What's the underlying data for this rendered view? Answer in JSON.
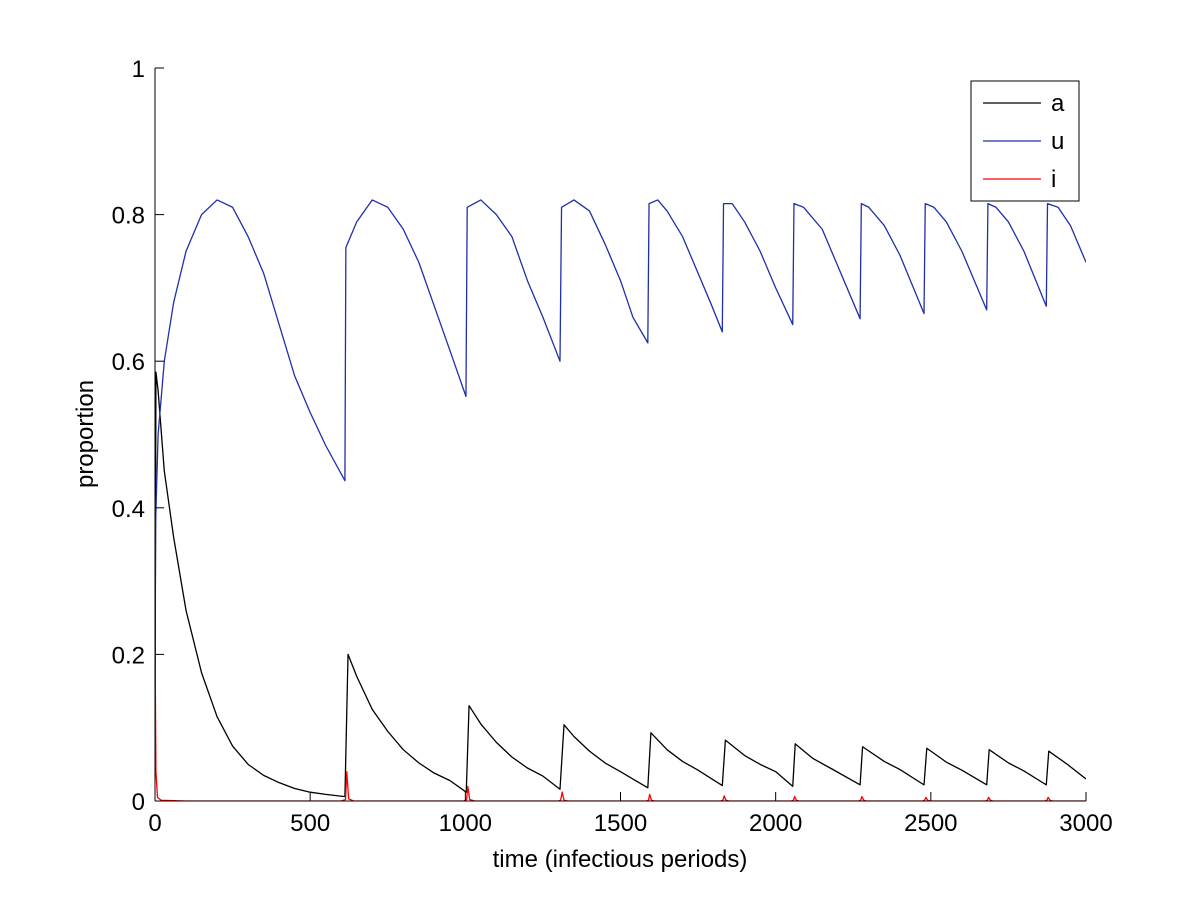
{
  "chart_data": {
    "type": "line",
    "xlabel": "time (infectious periods)",
    "ylabel": "proportion",
    "xlim": [
      0,
      3000
    ],
    "ylim": [
      0,
      1
    ],
    "xticks": [
      0,
      500,
      1000,
      1500,
      2000,
      2500,
      3000
    ],
    "yticks": [
      0,
      0.2,
      0.4,
      0.6,
      0.8,
      1
    ],
    "xtick_labels": [
      "0",
      "500",
      "1000",
      "1500",
      "2000",
      "2500",
      "3000"
    ],
    "ytick_labels": [
      "0",
      "0.2",
      "0.4",
      "0.6",
      "0.8",
      "1"
    ],
    "grid": false,
    "legend_position": "top-right",
    "series": [
      {
        "name": "a",
        "color": "#000000",
        "points": [
          [
            0,
            0.08
          ],
          [
            3,
            0.585
          ],
          [
            10,
            0.56
          ],
          [
            30,
            0.45
          ],
          [
            60,
            0.36
          ],
          [
            100,
            0.26
          ],
          [
            150,
            0.175
          ],
          [
            200,
            0.115
          ],
          [
            250,
            0.075
          ],
          [
            300,
            0.05
          ],
          [
            350,
            0.035
          ],
          [
            400,
            0.025
          ],
          [
            450,
            0.017
          ],
          [
            500,
            0.012
          ],
          [
            550,
            0.009
          ],
          [
            612,
            0.006
          ],
          [
            622,
            0.2
          ],
          [
            650,
            0.17
          ],
          [
            700,
            0.125
          ],
          [
            750,
            0.095
          ],
          [
            800,
            0.07
          ],
          [
            850,
            0.052
          ],
          [
            900,
            0.038
          ],
          [
            950,
            0.028
          ],
          [
            1003,
            0.012
          ],
          [
            1012,
            0.13
          ],
          [
            1050,
            0.105
          ],
          [
            1100,
            0.08
          ],
          [
            1150,
            0.06
          ],
          [
            1200,
            0.045
          ],
          [
            1250,
            0.034
          ],
          [
            1305,
            0.016
          ],
          [
            1318,
            0.104
          ],
          [
            1350,
            0.088
          ],
          [
            1400,
            0.068
          ],
          [
            1450,
            0.052
          ],
          [
            1500,
            0.04
          ],
          [
            1588,
            0.018
          ],
          [
            1598,
            0.093
          ],
          [
            1650,
            0.07
          ],
          [
            1700,
            0.054
          ],
          [
            1750,
            0.042
          ],
          [
            1828,
            0.021
          ],
          [
            1838,
            0.083
          ],
          [
            1900,
            0.062
          ],
          [
            1950,
            0.05
          ],
          [
            2000,
            0.04
          ],
          [
            2055,
            0.02
          ],
          [
            2063,
            0.078
          ],
          [
            2120,
            0.058
          ],
          [
            2180,
            0.044
          ],
          [
            2272,
            0.022
          ],
          [
            2280,
            0.074
          ],
          [
            2350,
            0.054
          ],
          [
            2400,
            0.043
          ],
          [
            2478,
            0.022
          ],
          [
            2487,
            0.072
          ],
          [
            2550,
            0.053
          ],
          [
            2600,
            0.042
          ],
          [
            2680,
            0.022
          ],
          [
            2688,
            0.07
          ],
          [
            2750,
            0.052
          ],
          [
            2800,
            0.041
          ],
          [
            2872,
            0.022
          ],
          [
            2880,
            0.068
          ],
          [
            2940,
            0.05
          ],
          [
            3000,
            0.03
          ]
        ]
      },
      {
        "name": "u",
        "color": "#1f2fa8",
        "points": [
          [
            0,
            0.17
          ],
          [
            2,
            0.38
          ],
          [
            10,
            0.5
          ],
          [
            30,
            0.6
          ],
          [
            60,
            0.68
          ],
          [
            100,
            0.75
          ],
          [
            150,
            0.8
          ],
          [
            200,
            0.82
          ],
          [
            250,
            0.81
          ],
          [
            300,
            0.77
          ],
          [
            350,
            0.72
          ],
          [
            400,
            0.65
          ],
          [
            450,
            0.58
          ],
          [
            500,
            0.53
          ],
          [
            550,
            0.485
          ],
          [
            612,
            0.437
          ],
          [
            615,
            0.755
          ],
          [
            650,
            0.79
          ],
          [
            700,
            0.82
          ],
          [
            750,
            0.81
          ],
          [
            800,
            0.78
          ],
          [
            850,
            0.735
          ],
          [
            900,
            0.675
          ],
          [
            950,
            0.615
          ],
          [
            1002,
            0.552
          ],
          [
            1006,
            0.81
          ],
          [
            1050,
            0.82
          ],
          [
            1100,
            0.8
          ],
          [
            1150,
            0.77
          ],
          [
            1200,
            0.71
          ],
          [
            1250,
            0.66
          ],
          [
            1305,
            0.6
          ],
          [
            1310,
            0.81
          ],
          [
            1350,
            0.82
          ],
          [
            1400,
            0.805
          ],
          [
            1450,
            0.76
          ],
          [
            1500,
            0.71
          ],
          [
            1540,
            0.66
          ],
          [
            1588,
            0.625
          ],
          [
            1592,
            0.815
          ],
          [
            1620,
            0.82
          ],
          [
            1650,
            0.805
          ],
          [
            1700,
            0.77
          ],
          [
            1750,
            0.72
          ],
          [
            1790,
            0.68
          ],
          [
            1828,
            0.64
          ],
          [
            1832,
            0.815
          ],
          [
            1860,
            0.815
          ],
          [
            1900,
            0.79
          ],
          [
            1950,
            0.75
          ],
          [
            2000,
            0.7
          ],
          [
            2055,
            0.65
          ],
          [
            2059,
            0.815
          ],
          [
            2090,
            0.81
          ],
          [
            2150,
            0.78
          ],
          [
            2200,
            0.73
          ],
          [
            2272,
            0.658
          ],
          [
            2276,
            0.815
          ],
          [
            2300,
            0.81
          ],
          [
            2350,
            0.785
          ],
          [
            2400,
            0.745
          ],
          [
            2478,
            0.665
          ],
          [
            2482,
            0.815
          ],
          [
            2510,
            0.81
          ],
          [
            2550,
            0.79
          ],
          [
            2600,
            0.75
          ],
          [
            2680,
            0.67
          ],
          [
            2684,
            0.815
          ],
          [
            2710,
            0.81
          ],
          [
            2750,
            0.79
          ],
          [
            2800,
            0.75
          ],
          [
            2872,
            0.675
          ],
          [
            2876,
            0.815
          ],
          [
            2910,
            0.81
          ],
          [
            2950,
            0.785
          ],
          [
            3000,
            0.735
          ]
        ]
      },
      {
        "name": "i",
        "color": "#ff0000",
        "points": [
          [
            0,
            0.22
          ],
          [
            3,
            0.04
          ],
          [
            8,
            0.005
          ],
          [
            20,
            0.001
          ],
          [
            100,
            0.0
          ],
          [
            600,
            0.0
          ],
          [
            614,
            0.002
          ],
          [
            618,
            0.04
          ],
          [
            624,
            0.003
          ],
          [
            640,
            0.0
          ],
          [
            995,
            0.0
          ],
          [
            1004,
            0.002
          ],
          [
            1008,
            0.02
          ],
          [
            1014,
            0.002
          ],
          [
            1030,
            0.0
          ],
          [
            1300,
            0.0
          ],
          [
            1307,
            0.001
          ],
          [
            1312,
            0.012
          ],
          [
            1318,
            0.001
          ],
          [
            1330,
            0.0
          ],
          [
            1583,
            0.0
          ],
          [
            1590,
            0.001
          ],
          [
            1594,
            0.009
          ],
          [
            1600,
            0.001
          ],
          [
            1610,
            0.0
          ],
          [
            1822,
            0.0
          ],
          [
            1830,
            0.001
          ],
          [
            1834,
            0.007
          ],
          [
            1840,
            0.001
          ],
          [
            1850,
            0.0
          ],
          [
            2050,
            0.0
          ],
          [
            2057,
            0.001
          ],
          [
            2061,
            0.006
          ],
          [
            2067,
            0.001
          ],
          [
            2075,
            0.0
          ],
          [
            2267,
            0.0
          ],
          [
            2274,
            0.001
          ],
          [
            2278,
            0.006
          ],
          [
            2284,
            0.001
          ],
          [
            2292,
            0.0
          ],
          [
            2473,
            0.0
          ],
          [
            2480,
            0.001
          ],
          [
            2484,
            0.005
          ],
          [
            2490,
            0.001
          ],
          [
            2498,
            0.0
          ],
          [
            2675,
            0.0
          ],
          [
            2682,
            0.001
          ],
          [
            2686,
            0.005
          ],
          [
            2692,
            0.001
          ],
          [
            2700,
            0.0
          ],
          [
            2867,
            0.0
          ],
          [
            2874,
            0.001
          ],
          [
            2878,
            0.005
          ],
          [
            2884,
            0.001
          ],
          [
            2892,
            0.0
          ],
          [
            3000,
            0.0
          ]
        ]
      }
    ]
  }
}
